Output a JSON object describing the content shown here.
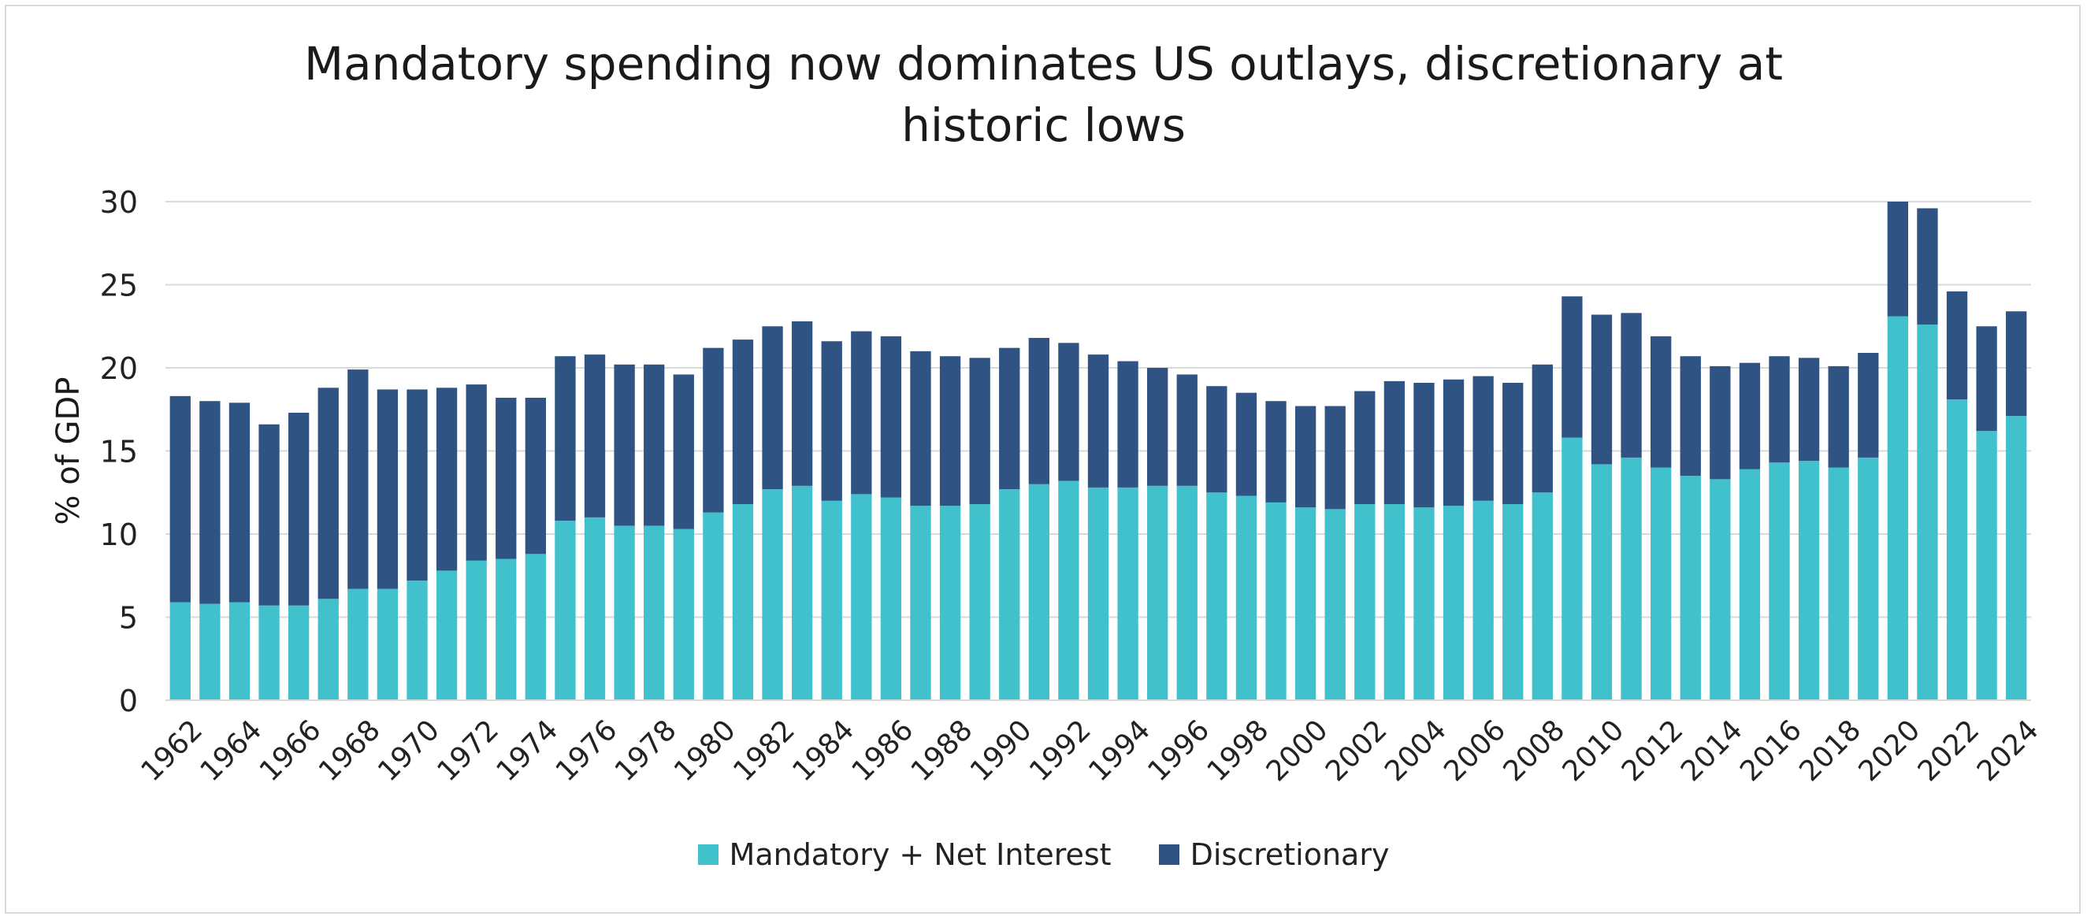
{
  "chart_data": {
    "type": "bar",
    "stacked": true,
    "title_lines": [
      "Mandatory spending now dominates US outlays, discretionary at",
      "historic lows"
    ],
    "xlabel": "",
    "ylabel": "% of GDP",
    "ylim": [
      0,
      30
    ],
    "yticks": [
      0,
      5,
      10,
      15,
      20,
      25,
      30
    ],
    "grid": true,
    "legend_position": "bottom",
    "categories": [
      "1962",
      "1963",
      "1964",
      "1965",
      "1966",
      "1967",
      "1968",
      "1969",
      "1970",
      "1971",
      "1972",
      "1973",
      "1974",
      "1975",
      "1976",
      "1977",
      "1978",
      "1979",
      "1980",
      "1981",
      "1982",
      "1983",
      "1984",
      "1985",
      "1986",
      "1987",
      "1988",
      "1989",
      "1990",
      "1991",
      "1992",
      "1993",
      "1994",
      "1995",
      "1996",
      "1997",
      "1998",
      "1999",
      "2000",
      "2001",
      "2002",
      "2003",
      "2004",
      "2005",
      "2006",
      "2007",
      "2008",
      "2009",
      "2010",
      "2011",
      "2012",
      "2013",
      "2014",
      "2015",
      "2016",
      "2017",
      "2018",
      "2019",
      "2020",
      "2021",
      "2022",
      "2023",
      "2024"
    ],
    "x_tick_labels": [
      "1962",
      "1964",
      "1966",
      "1968",
      "1970",
      "1972",
      "1974",
      "1976",
      "1978",
      "1980",
      "1982",
      "1984",
      "1986",
      "1988",
      "1990",
      "1992",
      "1994",
      "1996",
      "1998",
      "2000",
      "2002",
      "2004",
      "2006",
      "2008",
      "2010",
      "2012",
      "2014",
      "2016",
      "2018",
      "2020",
      "2022",
      "2024"
    ],
    "series": [
      {
        "name": "Mandatory + Net Interest",
        "color": "#41c1cc",
        "values": [
          5.9,
          5.8,
          5.9,
          5.7,
          5.7,
          6.1,
          6.7,
          6.7,
          7.2,
          7.8,
          8.4,
          8.5,
          8.8,
          10.8,
          11.0,
          10.5,
          10.5,
          10.3,
          11.3,
          11.8,
          12.7,
          12.9,
          12.0,
          12.4,
          12.2,
          11.7,
          11.7,
          11.8,
          12.7,
          13.0,
          13.2,
          12.8,
          12.8,
          12.9,
          12.9,
          12.5,
          12.3,
          11.9,
          11.6,
          11.5,
          11.8,
          11.8,
          11.6,
          11.7,
          12.0,
          11.8,
          12.5,
          15.8,
          14.2,
          14.6,
          14.0,
          13.5,
          13.3,
          13.9,
          14.3,
          14.4,
          14.0,
          14.6,
          23.1,
          22.6,
          18.1,
          16.2,
          17.1
        ]
      },
      {
        "name": "Discretionary",
        "color": "#2f5382",
        "values": [
          12.4,
          12.2,
          12.0,
          10.9,
          11.6,
          12.7,
          13.2,
          12.0,
          11.5,
          11.0,
          10.6,
          9.7,
          9.4,
          9.9,
          9.8,
          9.7,
          9.7,
          9.3,
          9.9,
          9.9,
          9.8,
          9.9,
          9.6,
          9.8,
          9.7,
          9.3,
          9.0,
          8.8,
          8.5,
          8.8,
          8.3,
          8.0,
          7.6,
          7.1,
          6.7,
          6.4,
          6.2,
          6.1,
          6.1,
          6.2,
          6.8,
          7.4,
          7.5,
          7.6,
          7.5,
          7.3,
          7.7,
          8.5,
          9.0,
          8.7,
          7.9,
          7.2,
          6.8,
          6.4,
          6.4,
          6.2,
          6.1,
          6.3,
          6.9,
          7.0,
          6.5,
          6.3,
          6.3
        ]
      }
    ]
  }
}
